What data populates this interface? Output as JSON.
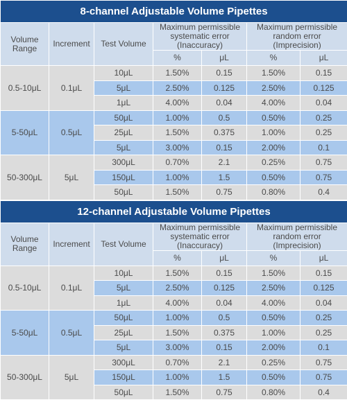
{
  "tables": [
    {
      "title": "8-channel Adjustable Volume Pipettes",
      "header": {
        "volume_range": "Volume Range",
        "increment": "Increment",
        "test_volume": "Test Volume",
        "systematic": "Maximum permissible systematic error (Inaccuracy)",
        "random": "Maximum permissible random error (Imprecision)",
        "units": [
          "%",
          "μL",
          "%",
          "μL"
        ]
      },
      "groups": [
        {
          "range": "0.5-10μL",
          "increment": "0.1μL",
          "rows": [
            [
              "10μL",
              "1.50%",
              "0.15",
              "1.50%",
              "0.15"
            ],
            [
              "5μL",
              "2.50%",
              "0.125",
              "2.50%",
              "0.125"
            ],
            [
              "1μL",
              "4.00%",
              "0.04",
              "4.00%",
              "0.04"
            ]
          ]
        },
        {
          "range": "5-50μL",
          "increment": "0.5μL",
          "rows": [
            [
              "50μL",
              "1.00%",
              "0.5",
              "0.50%",
              "0.25"
            ],
            [
              "25μL",
              "1.50%",
              "0.375",
              "1.00%",
              "0.25"
            ],
            [
              "5μL",
              "3.00%",
              "0.15",
              "2.00%",
              "0.1"
            ]
          ]
        },
        {
          "range": "50-300μL",
          "increment": "5μL",
          "rows": [
            [
              "300μL",
              "0.70%",
              "2.1",
              "0.25%",
              "0.75"
            ],
            [
              "150μL",
              "1.00%",
              "1.5",
              "0.50%",
              "0.75"
            ],
            [
              "50μL",
              "1.50%",
              "0.75",
              "0.80%",
              "0.4"
            ]
          ]
        }
      ]
    },
    {
      "title": "12-channel Adjustable Volume Pipettes",
      "header": {
        "volume_range": "Volume Range",
        "increment": "Increment",
        "test_volume": "Test Volume",
        "systematic": "Maximum permissible systematic error (Inaccuracy)",
        "random": "Maximum permissible random error (Imprecision)",
        "units": [
          "%",
          "μL",
          "%",
          "μL"
        ]
      },
      "groups": [
        {
          "range": "0.5-10μL",
          "increment": "0.1μL",
          "rows": [
            [
              "10μL",
              "1.50%",
              "0.15",
              "1.50%",
              "0.15"
            ],
            [
              "5μL",
              "2.50%",
              "0.125",
              "2.50%",
              "0.125"
            ],
            [
              "1μL",
              "4.00%",
              "0.04",
              "4.00%",
              "0.04"
            ]
          ]
        },
        {
          "range": "5-50μL",
          "increment": "0.5μL",
          "rows": [
            [
              "50μL",
              "1.00%",
              "0.5",
              "0.50%",
              "0.25"
            ],
            [
              "25μL",
              "1.50%",
              "0.375",
              "1.00%",
              "0.25"
            ],
            [
              "5μL",
              "3.00%",
              "0.15",
              "2.00%",
              "0.1"
            ]
          ]
        },
        {
          "range": "50-300μL",
          "increment": "5μL",
          "rows": [
            [
              "300μL",
              "0.70%",
              "2.1",
              "0.25%",
              "0.75"
            ],
            [
              "150μL",
              "1.00%",
              "1.5",
              "0.50%",
              "0.75"
            ],
            [
              "50μL",
              "1.50%",
              "0.75",
              "0.80%",
              "0.4"
            ]
          ]
        }
      ]
    }
  ]
}
